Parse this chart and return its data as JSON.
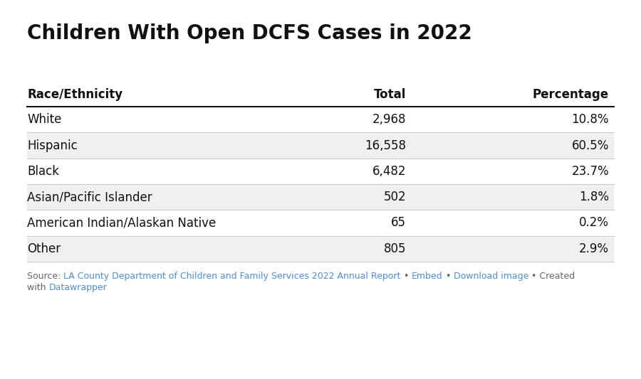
{
  "title": "Children With Open DCFS Cases in 2022",
  "col_headers": [
    "Race/Ethnicity",
    "Total",
    "Percentage"
  ],
  "rows": [
    [
      "White",
      "2,968",
      "10.8%"
    ],
    [
      "Hispanic",
      "16,558",
      "60.5%"
    ],
    [
      "Black",
      "6,482",
      "23.7%"
    ],
    [
      "Asian/Pacific Islander",
      "502",
      "1.8%"
    ],
    [
      "American Indian/Alaskan Native",
      "65",
      "0.2%"
    ],
    [
      "Other",
      "805",
      "2.9%"
    ]
  ],
  "row_shading": [
    false,
    true,
    false,
    true,
    false,
    true
  ],
  "bg_color": "#ffffff",
  "shaded_row_color": "#f0f0f0",
  "header_line_color": "#111111",
  "row_line_color": "#cccccc",
  "title_fontsize": 20,
  "header_fontsize": 12,
  "cell_fontsize": 12,
  "link_color": "#4a90d9",
  "text_color": "#111111",
  "source_color": "#666666",
  "source_fontsize": 9
}
